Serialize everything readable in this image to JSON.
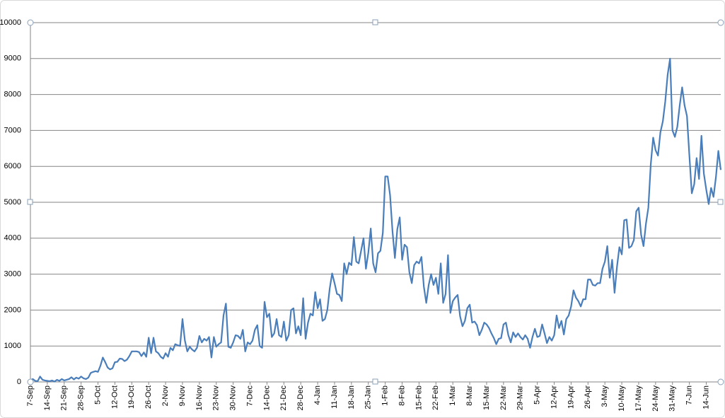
{
  "chart_data": {
    "type": "line",
    "categories": [
      "7-Sep",
      null,
      null,
      null,
      null,
      null,
      null,
      "14-Sep",
      null,
      null,
      null,
      null,
      null,
      null,
      "21-Sep",
      null,
      null,
      null,
      null,
      null,
      null,
      "28-Sep",
      null,
      null,
      null,
      null,
      null,
      null,
      "5-Oct",
      null,
      null,
      null,
      null,
      null,
      null,
      "12-Oct",
      null,
      null,
      null,
      null,
      null,
      null,
      "19-Oct",
      null,
      null,
      null,
      null,
      null,
      null,
      "26-Oct",
      null,
      null,
      null,
      null,
      null,
      null,
      "2-Nov",
      null,
      null,
      null,
      null,
      null,
      null,
      "9-Nov",
      null,
      null,
      null,
      null,
      null,
      null,
      "16-Nov",
      null,
      null,
      null,
      null,
      null,
      null,
      "23-Nov",
      null,
      null,
      null,
      null,
      null,
      null,
      "30-Nov",
      null,
      null,
      null,
      null,
      null,
      null,
      "7-Dec",
      null,
      null,
      null,
      null,
      null,
      null,
      "14-Dec",
      null,
      null,
      null,
      null,
      null,
      null,
      "21-Dec",
      null,
      null,
      null,
      null,
      null,
      null,
      "28-Dec",
      null,
      null,
      null,
      null,
      null,
      null,
      "4-Jan",
      null,
      null,
      null,
      null,
      null,
      null,
      "11-Jan",
      null,
      null,
      null,
      null,
      null,
      null,
      "18-Jan",
      null,
      null,
      null,
      null,
      null,
      null,
      "25-Jan",
      null,
      null,
      null,
      null,
      null,
      null,
      "1-Feb",
      null,
      null,
      null,
      null,
      null,
      null,
      "8-Feb",
      null,
      null,
      null,
      null,
      null,
      null,
      "15-Feb",
      null,
      null,
      null,
      null,
      null,
      null,
      "22-Feb",
      null,
      null,
      null,
      null,
      null,
      null,
      "1-Mar",
      null,
      null,
      null,
      null,
      null,
      null,
      "8-Mar",
      null,
      null,
      null,
      null,
      null,
      null,
      "15-Mar",
      null,
      null,
      null,
      null,
      null,
      null,
      "22-Mar",
      null,
      null,
      null,
      null,
      null,
      null,
      "29-Mar",
      null,
      null,
      null,
      null,
      null,
      null,
      "5-Apr",
      null,
      null,
      null,
      null,
      null,
      null,
      "12-Apr",
      null,
      null,
      null,
      null,
      null,
      null,
      "19-Apr",
      null,
      null,
      null,
      null,
      null,
      null,
      "26-Apr",
      null,
      null,
      null,
      null,
      null,
      null,
      "3-May",
      null,
      null,
      null,
      null,
      null,
      null,
      "10-May",
      null,
      null,
      null,
      null,
      null,
      null,
      "17-May",
      null,
      null,
      null,
      null,
      null,
      null,
      "24-May",
      null,
      null,
      null,
      null,
      null,
      null,
      "31-May",
      null,
      null,
      null,
      null,
      null,
      null,
      "7-Jun",
      null,
      null,
      null,
      null,
      null,
      null,
      "14-Jun",
      null,
      null,
      null,
      null,
      null,
      null
    ],
    "series": [
      {
        "color": "#4a7ebb",
        "values": [
          50,
          80,
          30,
          20,
          150,
          60,
          40,
          30,
          20,
          40,
          10,
          60,
          30,
          80,
          40,
          60,
          80,
          130,
          70,
          120,
          90,
          150,
          100,
          80,
          120,
          250,
          280,
          300,
          280,
          450,
          680,
          550,
          400,
          350,
          380,
          550,
          560,
          650,
          640,
          580,
          620,
          720,
          850,
          850,
          850,
          830,
          720,
          820,
          700,
          1230,
          800,
          1230,
          850,
          800,
          700,
          650,
          800,
          700,
          950,
          880,
          1050,
          1020,
          1000,
          1750,
          1150,
          850,
          980,
          900,
          850,
          950,
          1280,
          1100,
          1200,
          1150,
          1250,
          680,
          1250,
          980,
          1050,
          1100,
          1850,
          2180,
          980,
          950,
          1100,
          1300,
          1280,
          1200,
          1450,
          850,
          1100,
          1050,
          1150,
          1450,
          1580,
          1000,
          950,
          2230,
          1800,
          1900,
          1250,
          1350,
          1750,
          1300,
          1250,
          1680,
          1150,
          1300,
          2000,
          2050,
          1350,
          1550,
          1300,
          2330,
          1200,
          1650,
          1900,
          1850,
          2500,
          2050,
          2300,
          1700,
          1750,
          2000,
          2600,
          3020,
          2750,
          2450,
          2420,
          2250,
          3300,
          3000,
          3320,
          3250,
          4030,
          3350,
          3300,
          3650,
          4000,
          3150,
          3600,
          4270,
          3300,
          3050,
          3580,
          3650,
          4150,
          5720,
          5720,
          5200,
          4200,
          3450,
          4250,
          4580,
          3400,
          3820,
          3750,
          3050,
          2750,
          3250,
          3350,
          3300,
          3480,
          2650,
          2200,
          2700,
          3000,
          2700,
          2900,
          2450,
          3300,
          2200,
          2450,
          3530,
          1920,
          2250,
          2350,
          2420,
          1830,
          1550,
          1700,
          2050,
          2150,
          1650,
          1680,
          1580,
          1300,
          1450,
          1650,
          1600,
          1500,
          1350,
          1220,
          1050,
          1200,
          1220,
          1600,
          1650,
          1300,
          1100,
          1380,
          1250,
          1350,
          1250,
          1180,
          1300,
          1200,
          950,
          1250,
          1480,
          1250,
          1280,
          1600,
          1350,
          1080,
          1250,
          1150,
          1300,
          1850,
          1500,
          1700,
          1320,
          1750,
          1850,
          2100,
          2550,
          2350,
          2250,
          2100,
          2300,
          2300,
          2850,
          2850,
          2700,
          2680,
          2750,
          2750,
          3150,
          3350,
          3780,
          2900,
          3400,
          2480,
          3200,
          3750,
          3550,
          4500,
          4520,
          3730,
          3780,
          3950,
          4750,
          4850,
          4100,
          3780,
          4400,
          4850,
          6050,
          6800,
          6450,
          6300,
          6950,
          7250,
          7800,
          8550,
          9000,
          7000,
          6820,
          7100,
          7700,
          8200,
          7700,
          7400,
          6300,
          5250,
          5500,
          6230,
          5650,
          6850,
          5800,
          5350,
          4950,
          5400,
          5150,
          5700,
          6430,
          5900
        ]
      }
    ],
    "ylim": [
      0,
      10000
    ],
    "yticks": [
      0,
      1000,
      2000,
      3000,
      4000,
      5000,
      6000,
      7000,
      8000,
      9000,
      10000
    ],
    "grid": true
  }
}
